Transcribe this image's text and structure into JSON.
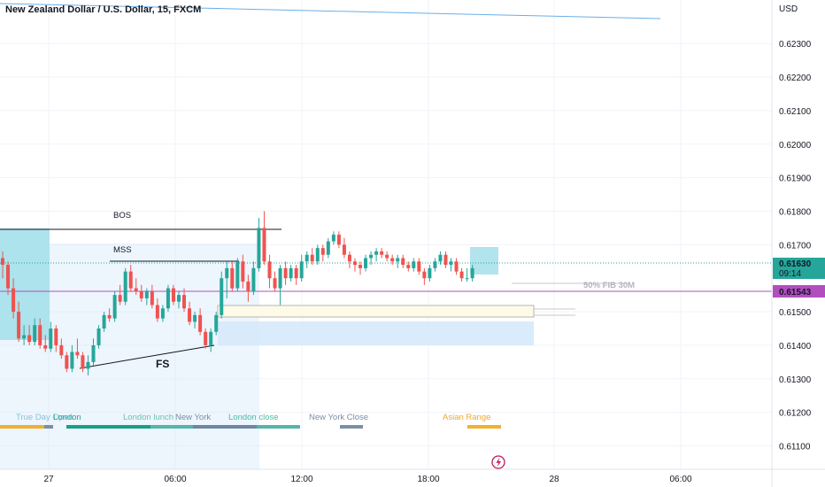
{
  "title": "New Zealand Dollar / U.S. Dollar, 15, FXCM",
  "currency": "USD",
  "chart_data": {
    "type": "candlestick",
    "symbol": "NZDUSD",
    "timeframe": "15",
    "ylim": [
      0.6103,
      0.6243
    ],
    "y_ticks": [
      "0.62300",
      "0.62200",
      "0.62100",
      "0.62000",
      "0.61900",
      "0.61800",
      "0.61700",
      "0.61500",
      "0.61400",
      "0.61300",
      "0.61200",
      "0.61100"
    ],
    "x_ticks": [
      "27",
      "06:00",
      "12:00",
      "18:00",
      "28",
      "06:00"
    ],
    "last_price": "0.61630",
    "countdown": "09:14",
    "level_price": "0.61543",
    "colors": {
      "up": "#26a69a",
      "down": "#ef5350",
      "level": "#b24fbf",
      "last": "#26a69a"
    },
    "candles": [
      [
        0.6166,
        0.6168,
        0.616,
        0.6164
      ],
      [
        0.6164,
        0.6165,
        0.6155,
        0.6157
      ],
      [
        0.6157,
        0.616,
        0.6148,
        0.615
      ],
      [
        0.615,
        0.6153,
        0.6141,
        0.6142
      ],
      [
        0.6142,
        0.6146,
        0.614,
        0.6143
      ],
      [
        0.6143,
        0.6146,
        0.614,
        0.6141
      ],
      [
        0.6141,
        0.6148,
        0.614,
        0.6146
      ],
      [
        0.6146,
        0.6148,
        0.6139,
        0.614
      ],
      [
        0.614,
        0.6143,
        0.6138,
        0.6139
      ],
      [
        0.6139,
        0.6147,
        0.6138,
        0.6145
      ],
      [
        0.6145,
        0.6146,
        0.6138,
        0.614
      ],
      [
        0.614,
        0.6142,
        0.6136,
        0.6137
      ],
      [
        0.6137,
        0.6138,
        0.6132,
        0.6133
      ],
      [
        0.6133,
        0.614,
        0.6132,
        0.6138
      ],
      [
        0.6138,
        0.6142,
        0.6136,
        0.6137
      ],
      [
        0.6137,
        0.6138,
        0.6132,
        0.6133
      ],
      [
        0.6133,
        0.6137,
        0.6131,
        0.6135
      ],
      [
        0.6135,
        0.6142,
        0.6134,
        0.614
      ],
      [
        0.614,
        0.6146,
        0.6139,
        0.6145
      ],
      [
        0.6145,
        0.615,
        0.6144,
        0.6149
      ],
      [
        0.6149,
        0.6151,
        0.6147,
        0.6148
      ],
      [
        0.6148,
        0.6156,
        0.6147,
        0.6155
      ],
      [
        0.6155,
        0.6158,
        0.6152,
        0.6153
      ],
      [
        0.6153,
        0.6163,
        0.6152,
        0.6162
      ],
      [
        0.6162,
        0.6164,
        0.6156,
        0.6157
      ],
      [
        0.6157,
        0.616,
        0.6155,
        0.6156
      ],
      [
        0.6156,
        0.6158,
        0.6153,
        0.6154
      ],
      [
        0.6154,
        0.6157,
        0.6152,
        0.6156
      ],
      [
        0.6156,
        0.6158,
        0.6151,
        0.6152
      ],
      [
        0.6152,
        0.6154,
        0.6147,
        0.6148
      ],
      [
        0.6148,
        0.6152,
        0.6147,
        0.6151
      ],
      [
        0.6151,
        0.6158,
        0.615,
        0.6157
      ],
      [
        0.6157,
        0.6158,
        0.6152,
        0.6153
      ],
      [
        0.6153,
        0.6156,
        0.6151,
        0.6155
      ],
      [
        0.6155,
        0.6157,
        0.615,
        0.6151
      ],
      [
        0.6151,
        0.6153,
        0.6146,
        0.6147
      ],
      [
        0.6147,
        0.615,
        0.6145,
        0.6149
      ],
      [
        0.6149,
        0.6151,
        0.6143,
        0.6144
      ],
      [
        0.6144,
        0.6145,
        0.6139,
        0.614
      ],
      [
        0.614,
        0.6145,
        0.6138,
        0.6144
      ],
      [
        0.6144,
        0.615,
        0.6143,
        0.6149
      ],
      [
        0.6149,
        0.6162,
        0.6148,
        0.616
      ],
      [
        0.616,
        0.6165,
        0.6154,
        0.6163
      ],
      [
        0.6163,
        0.6165,
        0.6156,
        0.6157
      ],
      [
        0.6157,
        0.6166,
        0.6156,
        0.6165
      ],
      [
        0.6165,
        0.6167,
        0.6157,
        0.6159
      ],
      [
        0.6159,
        0.6161,
        0.6153,
        0.6156
      ],
      [
        0.6156,
        0.6165,
        0.6155,
        0.6163
      ],
      [
        0.6163,
        0.6178,
        0.6162,
        0.6175
      ],
      [
        0.6175,
        0.618,
        0.6164,
        0.6165
      ],
      [
        0.6165,
        0.6167,
        0.6157,
        0.616
      ],
      [
        0.616,
        0.6162,
        0.6156,
        0.6157
      ],
      [
        0.6157,
        0.6164,
        0.6152,
        0.6163
      ],
      [
        0.6163,
        0.6165,
        0.6158,
        0.616
      ],
      [
        0.616,
        0.6164,
        0.6159,
        0.6163
      ],
      [
        0.6163,
        0.6164,
        0.6158,
        0.616
      ],
      [
        0.616,
        0.6167,
        0.6159,
        0.6165
      ],
      [
        0.6165,
        0.6168,
        0.6163,
        0.6167
      ],
      [
        0.6167,
        0.6169,
        0.6164,
        0.6165
      ],
      [
        0.6165,
        0.617,
        0.6164,
        0.6169
      ],
      [
        0.6169,
        0.617,
        0.6165,
        0.6167
      ],
      [
        0.6167,
        0.6172,
        0.6166,
        0.6171
      ],
      [
        0.6171,
        0.6174,
        0.617,
        0.6173
      ],
      [
        0.6173,
        0.6174,
        0.6169,
        0.617
      ],
      [
        0.617,
        0.6172,
        0.6166,
        0.6167
      ],
      [
        0.6167,
        0.6168,
        0.6163,
        0.6165
      ],
      [
        0.6165,
        0.6166,
        0.6162,
        0.6164
      ],
      [
        0.6164,
        0.6165,
        0.6161,
        0.6163
      ],
      [
        0.6163,
        0.6167,
        0.6162,
        0.6166
      ],
      [
        0.6166,
        0.6168,
        0.6164,
        0.6167
      ],
      [
        0.6167,
        0.6169,
        0.6165,
        0.6168
      ],
      [
        0.6168,
        0.6169,
        0.6166,
        0.6167
      ],
      [
        0.6167,
        0.6168,
        0.6165,
        0.6166
      ],
      [
        0.6166,
        0.6167,
        0.6164,
        0.6165
      ],
      [
        0.6165,
        0.6167,
        0.6163,
        0.6166
      ],
      [
        0.6166,
        0.6167,
        0.6163,
        0.6164
      ],
      [
        0.6164,
        0.6165,
        0.6162,
        0.6163
      ],
      [
        0.6163,
        0.6166,
        0.6162,
        0.6165
      ],
      [
        0.6165,
        0.6166,
        0.6161,
        0.6162
      ],
      [
        0.6162,
        0.6163,
        0.6158,
        0.616
      ],
      [
        0.616,
        0.6164,
        0.6159,
        0.6163
      ],
      [
        0.6163,
        0.6166,
        0.6162,
        0.6165
      ],
      [
        0.6165,
        0.6168,
        0.6164,
        0.6167
      ],
      [
        0.6167,
        0.6168,
        0.6163,
        0.6164
      ],
      [
        0.6164,
        0.6166,
        0.6162,
        0.6165
      ],
      [
        0.6165,
        0.6166,
        0.6161,
        0.6162
      ],
      [
        0.6162,
        0.6163,
        0.6159,
        0.616
      ],
      [
        0.616,
        0.6163,
        0.6159,
        0.616
      ],
      [
        0.616,
        0.6164,
        0.6159,
        0.6163
      ]
    ]
  },
  "annotations": {
    "bos": "BOS",
    "mss": "MSS",
    "fs": "FS",
    "fib": "50% FIB 30M"
  },
  "sessions": [
    {
      "label": "True Day Open",
      "color": "#89c4d6"
    },
    {
      "label": "London",
      "color": "#26a69a"
    },
    {
      "label": "London lunch",
      "color": "#6bc4b2"
    },
    {
      "label": "New York",
      "color": "#7b8fa5"
    },
    {
      "label": "London close",
      "color": "#53b6a8"
    },
    {
      "label": "New York Close",
      "color": "#7b8fa5"
    },
    {
      "label": "Asian Range",
      "color": "#f0a830"
    }
  ]
}
